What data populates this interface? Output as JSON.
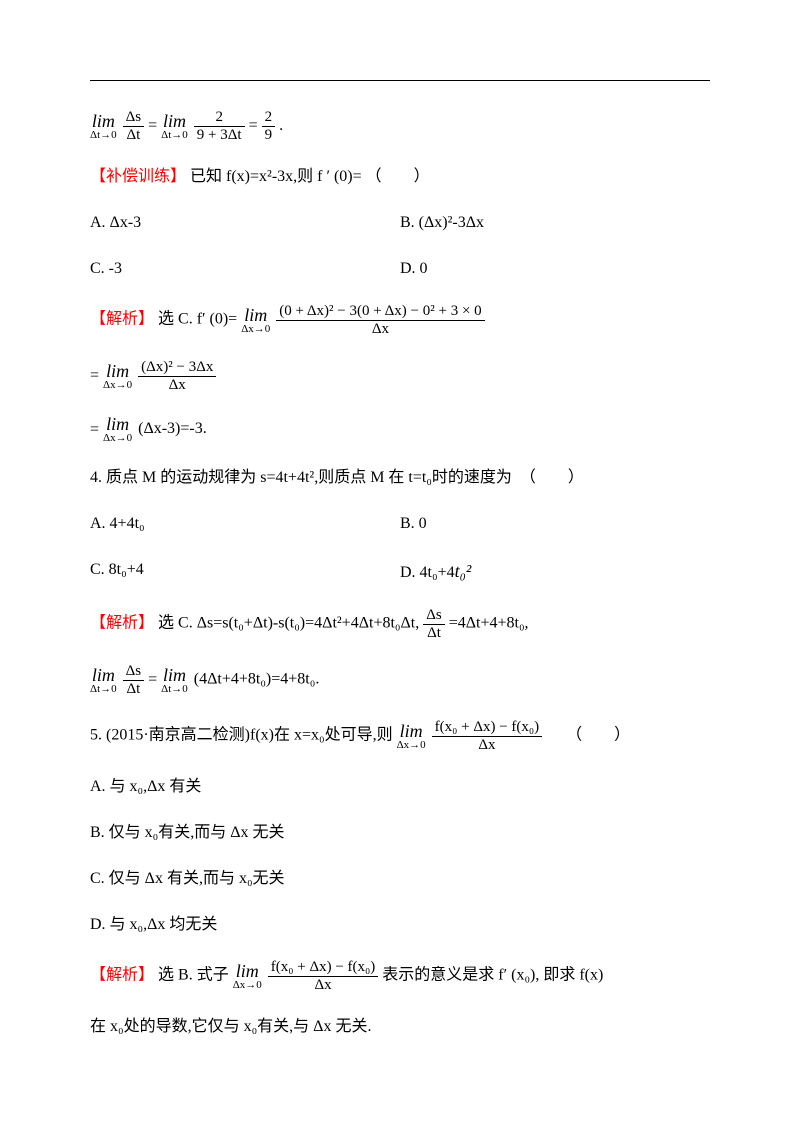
{
  "line1": {
    "lim_label": "lim",
    "cond": "Δt→0",
    "frac1_num": "Δs",
    "frac1_den": "Δt",
    "eq1": "=",
    "frac2_num": "2",
    "frac2_den": "9 + 3Δt",
    "eq2": "=",
    "frac3_num": "2",
    "frac3_den": "9",
    "end": "."
  },
  "supp": {
    "tag": "【补偿训练】",
    "text": "已知 f(x)=x²-3x,则 f ′ (0)= （　　）",
    "optA": "A. Δx-3",
    "optB": "B. (Δx)²-3Δx",
    "optC": "C. -3",
    "optD": "D. 0"
  },
  "ans1": {
    "tag": "【解析】",
    "pre": "选 C. f′ (0)=",
    "lim_label": "lim",
    "cond": "Δx→0",
    "frac_num": "(0 + Δx)² − 3(0 + Δx) − 0² + 3 × 0",
    "frac_den": "Δx",
    "line2_eq": "=",
    "line2_num": "(Δx)² − 3Δx",
    "line2_den": "Δx",
    "line3_eq": "=",
    "line3_text": "(Δx-3)=-3."
  },
  "q4": {
    "text": "4. 质点 M 的运动规律为 s=4t+4t²,则质点 M 在 t=t₀时的速度为　（　　）",
    "optA": "A. 4+4t₀",
    "optB": "B. 0",
    "optC": "C. 8t₀+4",
    "optD_pre": "D. 4t₀+4",
    "optD_sup": "t₀²"
  },
  "ans4": {
    "tag": "【解析】",
    "text1": "选 C. Δs=s(t₀+Δt)-s(t₀)=4Δt²+4Δt+8t₀Δt,",
    "frac_num": "Δs",
    "frac_den": "Δt",
    "text2": "=4Δt+4+8t₀,",
    "lim_label": "lim",
    "cond": "Δt→0",
    "line2_text": "(4Δt+4+8t₀)=4+8t₀."
  },
  "q5": {
    "text1": "5. (2015·南京高二检测)f(x)在 x=x₀处可导,则",
    "lim_label": "lim",
    "cond": "Δx→0",
    "frac_num": "f(x₀ + Δx) − f(x₀)",
    "frac_den": "Δx",
    "paren": "（　　）",
    "optA": "A. 与 x₀,Δx 有关",
    "optB": "B. 仅与 x₀有关,而与 Δx 无关",
    "optC": "C. 仅与 Δx 有关,而与 x₀无关",
    "optD": "D. 与 x₀,Δx 均无关"
  },
  "ans5": {
    "tag": "【解析】",
    "pre": "选 B. 式子",
    "lim_label": "lim",
    "cond": "Δx→0",
    "frac_num": "f(x₀ + Δx) − f(x₀)",
    "frac_den": "Δx",
    "post": " 表示的意义是求 f′ (x₀), 即求 f(x)",
    "line2": "在 x₀处的导数,它仅与 x₀有关,与 Δx 无关."
  }
}
